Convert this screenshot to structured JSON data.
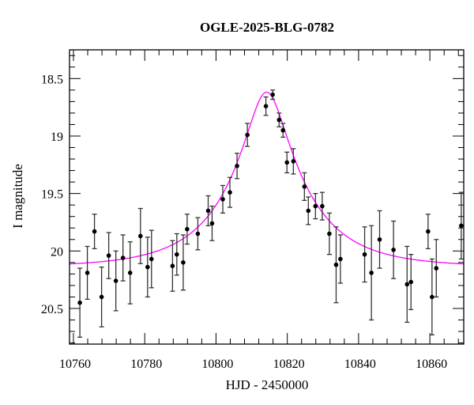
{
  "chart_data": {
    "type": "scatter",
    "title": "OGLE-2025-BLG-0782",
    "xlabel": "HJD - 2450000",
    "ylabel": "I magnitude",
    "xlim": [
      10758.9,
      10869.5
    ],
    "ylim": [
      20.81,
      18.25
    ],
    "y_inverted": true,
    "grid": false,
    "x_ticks": [
      10760,
      10780,
      10800,
      10820,
      10840,
      10860
    ],
    "x_tick_labels": [
      "10760",
      "10780",
      "10800",
      "10820",
      "10840",
      "10860"
    ],
    "x_minor_step": 4,
    "y_ticks": [
      18.5,
      19,
      19.5,
      20,
      20.5
    ],
    "y_tick_labels": [
      "18.5",
      "19",
      "19.5",
      "20",
      "20.5"
    ],
    "y_minor_step": 0.1,
    "colors": {
      "points": "#000000",
      "errorbars": "#333333",
      "model": "#ff00ff"
    },
    "points": [
      {
        "x": 10761.8,
        "y": 20.45,
        "err": 0.3
      },
      {
        "x": 10763.9,
        "y": 20.19,
        "err": 0.23
      },
      {
        "x": 10765.9,
        "y": 19.83,
        "err": 0.15
      },
      {
        "x": 10767.9,
        "y": 20.4,
        "err": 0.26
      },
      {
        "x": 10769.9,
        "y": 20.04,
        "err": 0.2
      },
      {
        "x": 10771.9,
        "y": 20.26,
        "err": 0.26
      },
      {
        "x": 10773.9,
        "y": 20.06,
        "err": 0.2
      },
      {
        "x": 10775.9,
        "y": 20.19,
        "err": 0.27
      },
      {
        "x": 10778.8,
        "y": 19.87,
        "err": 0.24
      },
      {
        "x": 10780.8,
        "y": 20.14,
        "err": 0.26
      },
      {
        "x": 10781.9,
        "y": 20.07,
        "err": 0.25
      },
      {
        "x": 10787.8,
        "y": 20.13,
        "err": 0.22
      },
      {
        "x": 10789.0,
        "y": 20.03,
        "err": 0.18
      },
      {
        "x": 10790.8,
        "y": 20.1,
        "err": 0.24
      },
      {
        "x": 10791.9,
        "y": 19.81,
        "err": 0.13
      },
      {
        "x": 10794.9,
        "y": 19.85,
        "err": 0.14
      },
      {
        "x": 10797.8,
        "y": 19.65,
        "err": 0.13
      },
      {
        "x": 10798.9,
        "y": 19.76,
        "err": 0.15
      },
      {
        "x": 10801.9,
        "y": 19.55,
        "err": 0.12
      },
      {
        "x": 10803.9,
        "y": 19.49,
        "err": 0.13
      },
      {
        "x": 10805.9,
        "y": 19.26,
        "err": 0.11
      },
      {
        "x": 10808.8,
        "y": 18.99,
        "err": 0.1
      },
      {
        "x": 10814.0,
        "y": 18.74,
        "err": 0.08
      },
      {
        "x": 10815.9,
        "y": 18.64,
        "err": 0.04
      },
      {
        "x": 10817.7,
        "y": 18.86,
        "err": 0.06
      },
      {
        "x": 10818.8,
        "y": 18.95,
        "err": 0.06
      },
      {
        "x": 10819.9,
        "y": 19.23,
        "err": 0.09
      },
      {
        "x": 10821.7,
        "y": 19.22,
        "err": 0.11
      },
      {
        "x": 10824.8,
        "y": 19.44,
        "err": 0.12
      },
      {
        "x": 10825.9,
        "y": 19.65,
        "err": 0.12
      },
      {
        "x": 10827.9,
        "y": 19.61,
        "err": 0.11
      },
      {
        "x": 10829.8,
        "y": 19.61,
        "err": 0.12
      },
      {
        "x": 10831.8,
        "y": 19.85,
        "err": 0.18
      },
      {
        "x": 10833.7,
        "y": 20.12,
        "err": 0.33
      },
      {
        "x": 10834.9,
        "y": 20.07,
        "err": 0.21
      },
      {
        "x": 10841.7,
        "y": 20.03,
        "err": 0.24
      },
      {
        "x": 10843.6,
        "y": 20.19,
        "err": 0.41
      },
      {
        "x": 10845.9,
        "y": 19.9,
        "err": 0.25
      },
      {
        "x": 10849.8,
        "y": 19.99,
        "err": 0.25
      },
      {
        "x": 10853.6,
        "y": 20.29,
        "err": 0.33
      },
      {
        "x": 10854.7,
        "y": 20.27,
        "err": 0.24
      },
      {
        "x": 10859.5,
        "y": 19.83,
        "err": 0.15
      },
      {
        "x": 10860.6,
        "y": 20.4,
        "err": 0.33
      },
      {
        "x": 10861.8,
        "y": 20.15,
        "err": 0.25
      },
      {
        "x": 10868.8,
        "y": 19.78,
        "err": 0.29
      }
    ],
    "model": {
      "type": "point-lens",
      "t0": 10814.2,
      "u0": 0.252,
      "tE": 21,
      "baseline": 20.14
    }
  }
}
